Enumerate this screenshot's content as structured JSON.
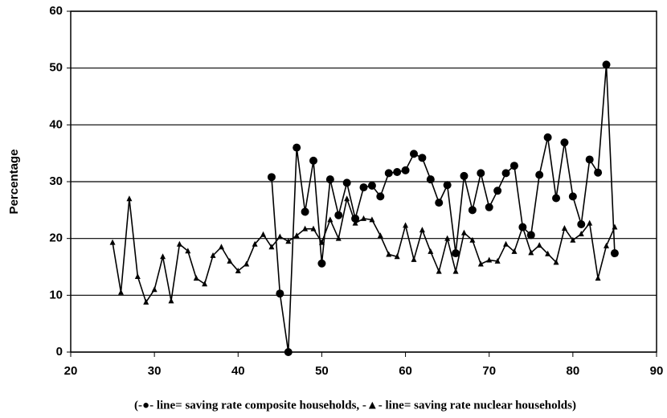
{
  "chart_data": {
    "type": "line",
    "y_label": "Percentage",
    "x_label": "(-●- line= saving rate composite households, -▲- line= saving rate nuclear households)",
    "xlim": [
      20,
      90
    ],
    "xticks": [
      20,
      30,
      40,
      50,
      60,
      70,
      80,
      90
    ],
    "ylim": [
      0,
      60
    ],
    "yticks": [
      0,
      10,
      20,
      30,
      40,
      50,
      60
    ],
    "grid": true,
    "series": [
      {
        "marker": "circle",
        "color": "#000000",
        "x": [
          44,
          45,
          46,
          47,
          48,
          49,
          50,
          51,
          52,
          53,
          54,
          55,
          56,
          57,
          58,
          59,
          60,
          61,
          62,
          63,
          64,
          65,
          66,
          67,
          68,
          69,
          70,
          71,
          72,
          73,
          74,
          75,
          76,
          77,
          78,
          79,
          80,
          81,
          82,
          83,
          84,
          85
        ],
        "values": [
          30.8,
          10.3,
          0,
          36,
          24.7,
          33.7,
          15.6,
          30.4,
          24.1,
          29.8,
          23.5,
          29,
          29.3,
          27.4,
          31.5,
          31.7,
          32,
          34.9,
          34.2,
          30.4,
          26.3,
          29.4,
          17.4,
          31,
          25,
          31.5,
          25.5,
          28.4,
          31.5,
          32.8,
          22,
          20.6,
          31.2,
          37.8,
          27.1,
          36.9,
          27.4,
          22.5,
          33.9,
          31.6,
          50.6,
          17.4
        ]
      },
      {
        "marker": "triangle",
        "color": "#000000",
        "x": [
          25,
          26,
          27,
          28,
          29,
          30,
          31,
          32,
          33,
          34,
          35,
          36,
          37,
          38,
          39,
          40,
          41,
          42,
          43,
          44,
          45,
          46,
          47,
          48,
          49,
          50,
          51,
          52,
          53,
          54,
          55,
          56,
          57,
          58,
          59,
          60,
          61,
          62,
          63,
          64,
          65,
          66,
          67,
          68,
          69,
          70,
          71,
          72,
          73,
          74,
          75,
          76,
          77,
          78,
          79,
          80,
          81,
          82,
          83,
          84,
          85
        ],
        "values": [
          19.3,
          10.5,
          27,
          13.3,
          8.8,
          11,
          16.8,
          9,
          19,
          17.8,
          13,
          12,
          17,
          18.5,
          16,
          14.3,
          15.5,
          19,
          20.7,
          18.5,
          20.3,
          19.5,
          20.5,
          21.7,
          21.7,
          19.3,
          23.3,
          20,
          27,
          22.7,
          23.5,
          23.3,
          20.5,
          17.2,
          16.8,
          22.3,
          16.3,
          21.5,
          17.7,
          14.2,
          20,
          14.2,
          21,
          19.7,
          15.5,
          16.2,
          16,
          19,
          17.7,
          22,
          17.5,
          18.8,
          17.3,
          15.8,
          21.8,
          19.7,
          20.8,
          22.7,
          13,
          18.7,
          22
        ]
      }
    ]
  }
}
